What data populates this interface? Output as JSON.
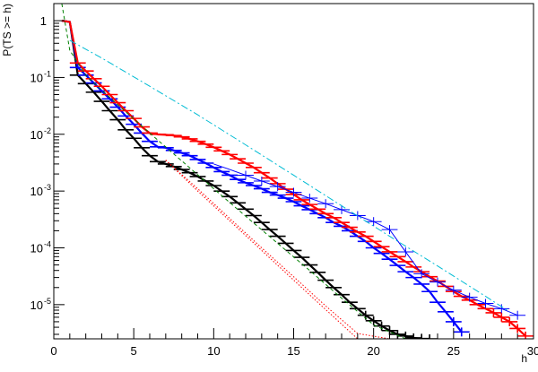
{
  "chart_data": {
    "type": "line",
    "title": "",
    "xlabel": "h",
    "ylabel": "P(TS >= h)",
    "xlim": [
      0,
      30
    ],
    "ylim": [
      2.5e-06,
      2.0
    ],
    "yscale": "log",
    "grid": false,
    "x_ticks": [
      0,
      5,
      10,
      15,
      20,
      25,
      30
    ],
    "y_ticks": [
      {
        "value": 1,
        "base": "1",
        "exp": ""
      },
      {
        "value": 0.1,
        "base": "10",
        "exp": "-1"
      },
      {
        "value": 0.01,
        "base": "10",
        "exp": "-2"
      },
      {
        "value": 0.001,
        "base": "10",
        "exp": "-3"
      },
      {
        "value": 0.0001,
        "base": "10",
        "exp": "-4"
      },
      {
        "value": 1e-05,
        "base": "10",
        "exp": "-5"
      }
    ],
    "series": [
      {
        "color": "#000000",
        "style": "solid-markers",
        "x": [
          0.5,
          1,
          1.5,
          2,
          2.5,
          3,
          3.5,
          4,
          4.5,
          5,
          5.5,
          6,
          6.5,
          7,
          7.5,
          8,
          8.5,
          9,
          9.5,
          10,
          10.5,
          11,
          11.5,
          12,
          12.5,
          13,
          13.5,
          14,
          14.5,
          15,
          15.5,
          16,
          16.5,
          17,
          17.5,
          18,
          18.5,
          19,
          19.5,
          20,
          20.5,
          21,
          21.5,
          22,
          22.5,
          23,
          23.5
        ],
        "y": [
          1.0,
          0.95,
          0.11,
          0.078,
          0.055,
          0.038,
          0.026,
          0.018,
          0.012,
          0.0085,
          0.0058,
          0.0042,
          0.0033,
          0.003,
          0.0027,
          0.0024,
          0.0021,
          0.0018,
          0.0015,
          0.00125,
          0.001,
          0.0008,
          0.00062,
          0.00048,
          0.00037,
          0.00028,
          0.00021,
          0.00016,
          0.00012,
          9e-05,
          6.8e-05,
          5e-05,
          3.7e-05,
          2.7e-05,
          2e-05,
          1.5e-05,
          1.1e-05,
          8.5e-06,
          6.5e-06,
          5.2e-06,
          4.2e-06,
          3.5e-06,
          3e-06,
          2.8e-06,
          2.6e-06,
          2.5e-06,
          2.5e-06
        ]
      },
      {
        "color": "#0000ff",
        "style": "solid-markers",
        "x": [
          0.5,
          1,
          1.5,
          2,
          2.5,
          3,
          3.5,
          4,
          4.5,
          5,
          5.5,
          6,
          6.5,
          7,
          7.5,
          8,
          8.5,
          9,
          9.5,
          10,
          10.5,
          11,
          11.5,
          12,
          12.5,
          13,
          13.5,
          14,
          14.5,
          15,
          15.5,
          16,
          16.5,
          17,
          17.5,
          18,
          18.5,
          19,
          19.5,
          20,
          20.5,
          21,
          21.5,
          22,
          22.5,
          23,
          23.5,
          24,
          24.5,
          25,
          25.5
        ],
        "y": [
          1.0,
          0.95,
          0.15,
          0.11,
          0.08,
          0.058,
          0.042,
          0.03,
          0.021,
          0.015,
          0.0105,
          0.0075,
          0.006,
          0.0058,
          0.0052,
          0.0047,
          0.0042,
          0.0036,
          0.0031,
          0.0026,
          0.0022,
          0.0019,
          0.0016,
          0.0014,
          0.00125,
          0.0011,
          0.00095,
          0.00085,
          0.00075,
          0.00065,
          0.00055,
          0.00047,
          0.0004,
          0.00034,
          0.00028,
          0.00024,
          0.0002,
          0.00016,
          0.00013,
          0.0001,
          8e-05,
          6.3e-05,
          4.9e-05,
          3.8e-05,
          3e-05,
          2.3e-05,
          1.7e-05,
          1.1e-05,
          7.5e-06,
          5e-06,
          3.3e-06
        ]
      },
      {
        "color": "#ff0000",
        "style": "solid-markers",
        "x": [
          0.5,
          1,
          1.5,
          2,
          2.5,
          3,
          3.5,
          4,
          4.5,
          5,
          5.5,
          6,
          6.5,
          7,
          7.5,
          8,
          8.5,
          9,
          9.5,
          10,
          10.5,
          11,
          11.5,
          12,
          12.5,
          13,
          13.5,
          14,
          14.5,
          15,
          15.5,
          16,
          16.5,
          17,
          17.5,
          18,
          18.5,
          19,
          19.5,
          20,
          20.5,
          21,
          21.5,
          22,
          22.5,
          23,
          23.5,
          24,
          24.5,
          25,
          25.5,
          26,
          26.5,
          27,
          27.5,
          28,
          28.5,
          29,
          29.5
        ],
        "y": [
          1.0,
          0.95,
          0.18,
          0.13,
          0.095,
          0.07,
          0.05,
          0.036,
          0.026,
          0.019,
          0.0135,
          0.0105,
          0.01,
          0.0098,
          0.0095,
          0.009,
          0.0083,
          0.0075,
          0.0067,
          0.0059,
          0.0051,
          0.0044,
          0.0037,
          0.0031,
          0.0026,
          0.0021,
          0.0017,
          0.00135,
          0.00108,
          0.00087,
          0.0007,
          0.00058,
          0.00048,
          0.0004,
          0.00034,
          0.00028,
          0.00023,
          0.00019,
          0.00016,
          0.00013,
          0.000105,
          8.5e-05,
          7e-05,
          5.7e-05,
          4.6e-05,
          3.8e-05,
          3.1e-05,
          2.6e-05,
          2.1e-05,
          1.7e-05,
          1.4e-05,
          1.2e-05,
          1e-05,
          8.5e-06,
          7.2e-06,
          6e-06,
          5e-06,
          3.8e-06,
          2.8e-06
        ]
      },
      {
        "color": "#0000ff",
        "style": "thin-markers",
        "x": [
          10,
          11,
          12,
          13,
          14,
          15,
          16,
          17,
          18,
          19,
          20,
          21,
          22,
          23,
          24,
          25,
          26,
          27,
          28,
          29
        ],
        "y": [
          0.003,
          0.0024,
          0.0019,
          0.0015,
          0.0012,
          0.00095,
          0.00075,
          0.0006,
          0.00047,
          0.00037,
          0.00029,
          0.00021,
          8.5e-05,
          3.5e-05,
          2.5e-05,
          1.8e-05,
          1.35e-05,
          1.05e-05,
          8.5e-06,
          6.5e-06
        ]
      },
      {
        "color": "#00bcd4",
        "style": "dash-dot",
        "x": [
          1,
          3,
          6,
          9,
          12,
          15,
          18,
          21,
          24,
          27,
          28.5
        ],
        "y": [
          0.45,
          0.22,
          0.07,
          0.022,
          0.0065,
          0.0019,
          0.00055,
          0.00016,
          4.8e-05,
          1.4e-05,
          7.5e-06
        ]
      },
      {
        "color": "#008000",
        "style": "dashed",
        "x": [
          0.5,
          1,
          2,
          4,
          6,
          8,
          10,
          12,
          14,
          16,
          18,
          20,
          22,
          23
        ],
        "y": [
          2.0,
          0.3,
          0.11,
          0.033,
          0.0105,
          0.0034,
          0.0011,
          0.00036,
          0.00012,
          4e-05,
          1.3e-05,
          4.4e-06,
          2.5e-06,
          2.5e-06
        ]
      },
      {
        "color": "#ff0000",
        "style": "dotted",
        "x": [
          7,
          9,
          11,
          13,
          15,
          17,
          19,
          21,
          21.8
        ],
        "y": [
          0.0035,
          0.001,
          0.0003,
          9e-05,
          2.7e-05,
          8.2e-06,
          2.5e-06,
          2.5e-06,
          2.5e-06
        ]
      },
      {
        "color": "#ff0000",
        "style": "dotted",
        "x": [
          7,
          9,
          11,
          13,
          15,
          17,
          19,
          21,
          21.8
        ],
        "y": [
          0.0035,
          0.0011,
          0.00033,
          0.0001,
          3.1e-05,
          9.5e-06,
          3.1e-06,
          2.5e-06,
          2.5e-06
        ]
      }
    ]
  }
}
